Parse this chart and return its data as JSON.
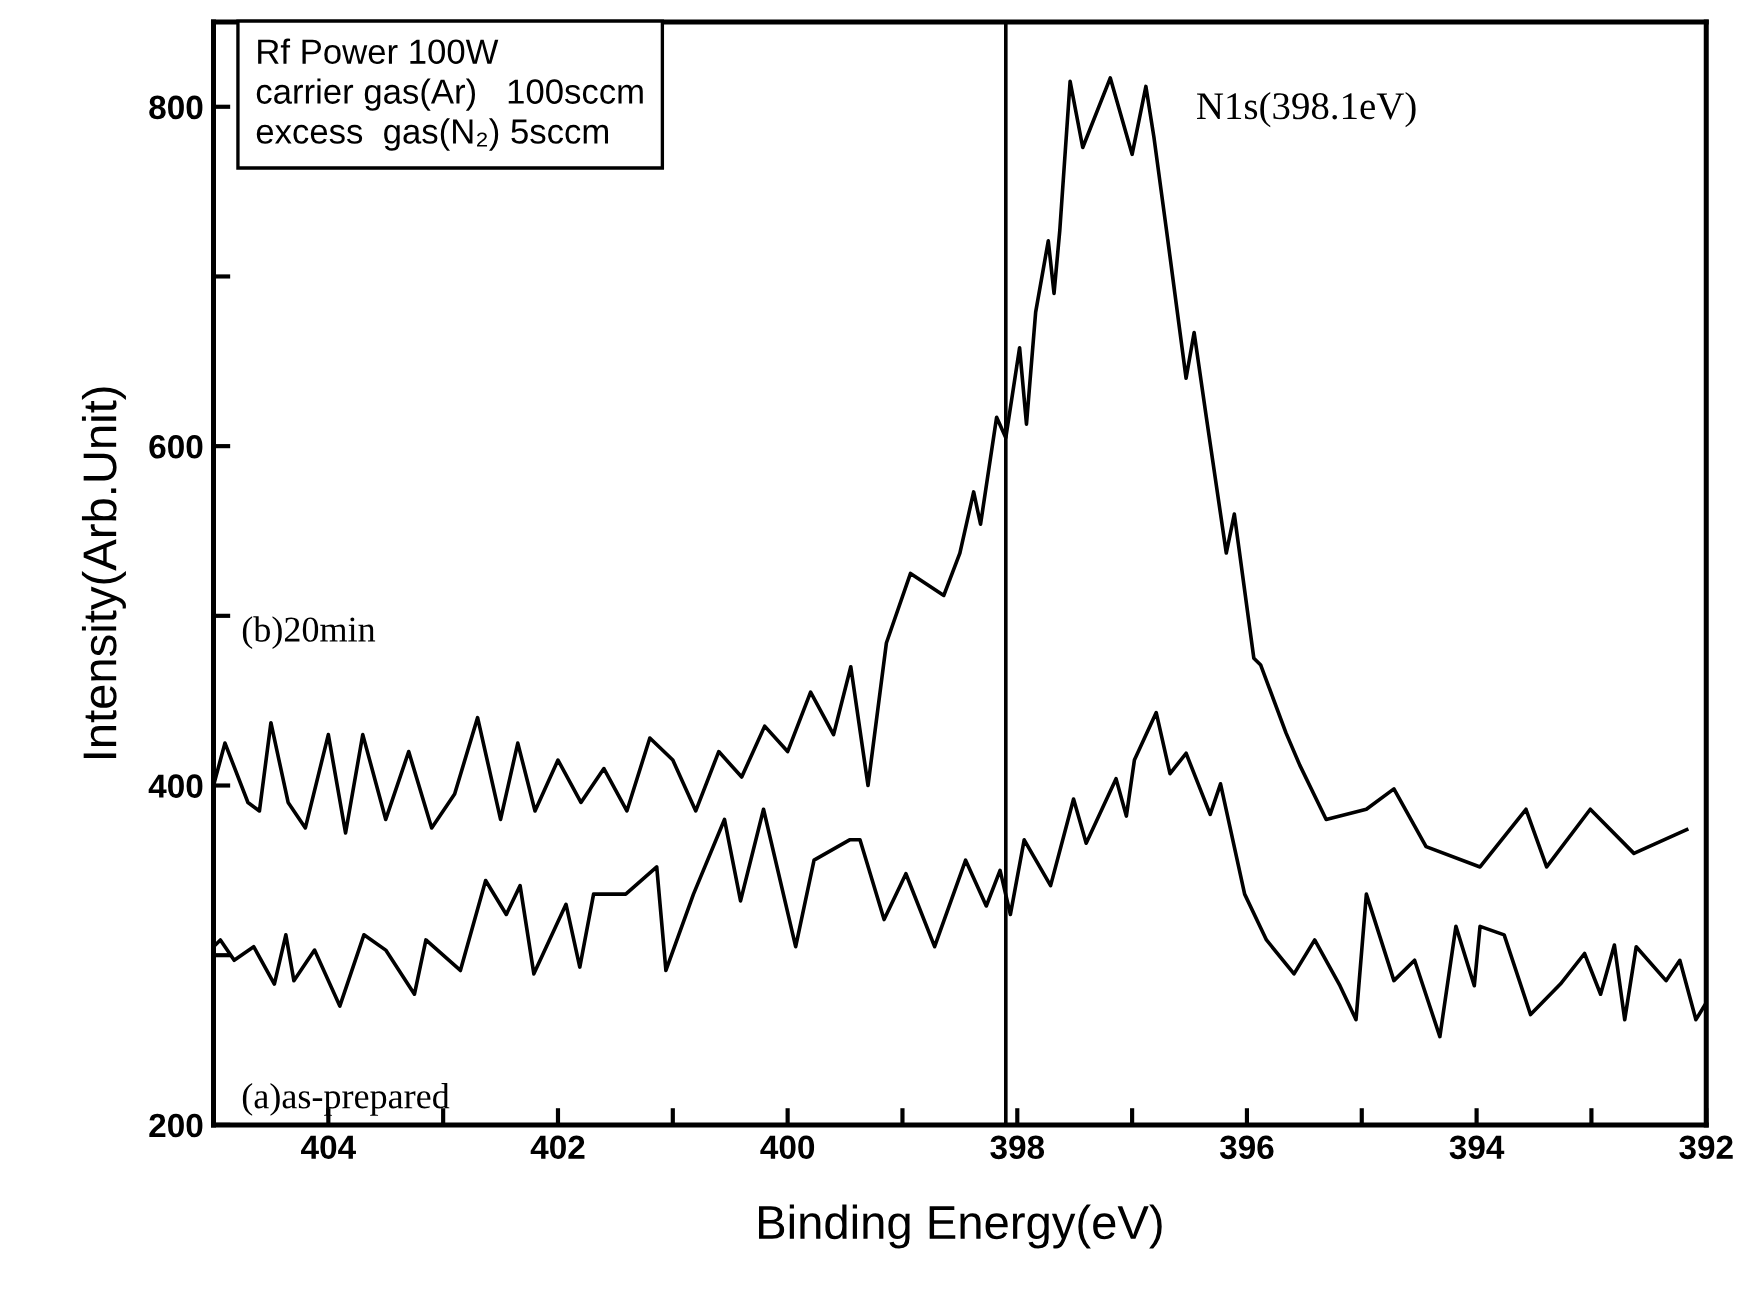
{
  "chart_data": {
    "type": "line",
    "xlabel": "Binding Energy(eV)",
    "ylabel": "Intensity(Arb.Unit)",
    "xlim": [
      405,
      392
    ],
    "ylim": [
      200,
      850
    ],
    "xticks": [
      {
        "value": 405,
        "label": null
      },
      404,
      {
        "value": 403,
        "label": null
      },
      402,
      {
        "value": 401,
        "label": null
      },
      400,
      {
        "value": 399,
        "label": null
      },
      398,
      {
        "value": 397,
        "label": null
      },
      396,
      {
        "value": 395,
        "label": null
      },
      394,
      {
        "value": 393,
        "label": null
      },
      392
    ],
    "yticks": [
      200,
      {
        "value": 300,
        "label": null
      },
      400,
      {
        "value": 500,
        "label": null
      },
      600,
      {
        "value": 700,
        "label": null
      },
      800
    ],
    "grid": false,
    "legend": false,
    "marker": "none",
    "line_style": "solid",
    "ref_lines": [
      {
        "axis": "x",
        "value": 398.1,
        "color": "#000000"
      }
    ],
    "annotations": [
      "Rf Power 100W",
      "carrier gas(Ar)   100sccm",
      "excess  gas(N₂) 5sccm",
      {
        "text": "N1s(398.1eV)",
        "x": 396.88,
        "y": 812
      }
    ],
    "series": [
      {
        "name": "(b)20min",
        "color": "#000000",
        "x": [
          405.0,
          404.9,
          404.7,
          404.6,
          404.5,
          404.35,
          404.2,
          404.0,
          403.85,
          403.7,
          403.5,
          403.3,
          403.1,
          402.9,
          402.7,
          402.5,
          402.35,
          402.2,
          402.0,
          401.8,
          401.6,
          401.4,
          401.2,
          401.0,
          400.8,
          400.6,
          400.4,
          400.2,
          400.0,
          399.8,
          399.6,
          399.45,
          399.3,
          399.14,
          398.93,
          398.64,
          398.5,
          398.38,
          398.32,
          398.18,
          398.1,
          397.98,
          397.92,
          397.84,
          397.73,
          397.68,
          397.63,
          397.54,
          397.43,
          397.19,
          397.0,
          396.88,
          396.81,
          396.7,
          396.53,
          396.46,
          396.36,
          396.18,
          396.11,
          395.94,
          395.88,
          395.66,
          395.54,
          395.31,
          394.96,
          394.72,
          394.44,
          393.97,
          393.57,
          393.39,
          393.01,
          392.63,
          392.17
        ],
        "values": [
          400,
          425,
          390,
          385,
          437,
          390,
          375,
          430,
          372,
          430,
          380,
          420,
          375,
          395,
          440,
          380,
          425,
          385,
          415,
          390,
          410,
          385,
          428,
          415,
          385,
          420,
          405,
          435,
          420,
          455,
          430,
          470,
          400,
          484,
          525,
          512,
          537,
          573,
          554,
          617,
          605,
          658,
          613,
          679,
          721,
          690,
          727,
          815,
          776,
          817,
          772,
          812,
          782,
          727,
          640,
          667,
          620,
          537,
          560,
          475,
          471,
          431,
          412,
          380,
          386,
          398,
          364,
          352,
          386,
          352,
          386,
          360,
          374
        ]
      },
      {
        "name": "(a)as-prepared",
        "color": "#000000",
        "x": [
          405.0,
          404.94,
          404.82,
          404.65,
          404.47,
          404.37,
          404.3,
          404.12,
          403.9,
          403.69,
          403.5,
          403.25,
          403.15,
          402.85,
          402.63,
          402.45,
          402.33,
          402.21,
          401.93,
          401.81,
          401.69,
          401.41,
          401.14,
          401.06,
          400.82,
          400.55,
          400.41,
          400.21,
          399.93,
          399.77,
          399.46,
          399.37,
          399.16,
          398.97,
          398.72,
          398.45,
          398.27,
          398.15,
          398.06,
          397.94,
          397.71,
          397.51,
          397.4,
          397.14,
          397.05,
          396.98,
          396.79,
          396.67,
          396.53,
          396.32,
          396.23,
          396.02,
          395.83,
          395.59,
          395.41,
          395.19,
          395.05,
          394.96,
          394.72,
          394.54,
          394.32,
          394.18,
          394.02,
          393.97,
          393.76,
          393.53,
          393.27,
          393.06,
          392.92,
          392.8,
          392.71,
          392.61,
          392.35,
          392.23,
          392.09,
          392.0
        ],
        "values": [
          305,
          309,
          297,
          305,
          283,
          312,
          285,
          303,
          270,
          312,
          303,
          277,
          309,
          291,
          344,
          324,
          341,
          289,
          330,
          293,
          336,
          336,
          352,
          291,
          336,
          380,
          332,
          386,
          305,
          356,
          368,
          368,
          321,
          348,
          305,
          356,
          329,
          350,
          324,
          368,
          341,
          392,
          366,
          404,
          382,
          415,
          443,
          407,
          419,
          383,
          401,
          336,
          309,
          289,
          309,
          282,
          262,
          336,
          285,
          297,
          252,
          317,
          282,
          317,
          312,
          265,
          283,
          301,
          277,
          306,
          262,
          305,
          285,
          297,
          262,
          272
        ]
      }
    ]
  }
}
